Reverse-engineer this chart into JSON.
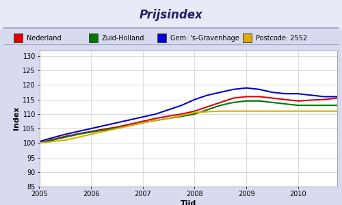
{
  "title": "Prijsindex",
  "xlabel": "Tijd",
  "ylabel": "Index",
  "ylim": [
    85,
    132
  ],
  "yticks": [
    85,
    90,
    95,
    100,
    105,
    110,
    115,
    120,
    125,
    130
  ],
  "xlim": [
    2005.0,
    2010.75
  ],
  "xticks": [
    2005,
    2006,
    2007,
    2008,
    2009,
    2010
  ],
  "background_outer": "#d8daf0",
  "background_inner": "#ffffff",
  "title_color": "#222266",
  "legend_labels": [
    "Nederland",
    "Zuid-Holland",
    "Gem: 's-Gravenhage",
    "Postcode: 2552"
  ],
  "legend_colors": [
    "#dd0000",
    "#007700",
    "#0000cc",
    "#ddaa00"
  ],
  "series": {
    "nederland": {
      "color": "#dd0000",
      "x": [
        2005.0,
        2005.25,
        2005.5,
        2005.75,
        2006.0,
        2006.25,
        2006.5,
        2006.75,
        2007.0,
        2007.25,
        2007.5,
        2007.75,
        2008.0,
        2008.25,
        2008.5,
        2008.75,
        2009.0,
        2009.25,
        2009.5,
        2009.75,
        2010.0,
        2010.25,
        2010.5,
        2010.75
      ],
      "y": [
        100.0,
        101.2,
        102.3,
        103.2,
        104.0,
        104.8,
        105.5,
        106.5,
        107.5,
        108.5,
        109.3,
        110.0,
        111.0,
        112.5,
        114.0,
        115.5,
        116.0,
        116.0,
        115.5,
        115.0,
        114.5,
        114.8,
        115.0,
        115.5
      ]
    },
    "zuidholland": {
      "color": "#007700",
      "x": [
        2005.0,
        2005.25,
        2005.5,
        2005.75,
        2006.0,
        2006.25,
        2006.5,
        2006.75,
        2007.0,
        2007.25,
        2007.5,
        2007.75,
        2008.0,
        2008.25,
        2008.5,
        2008.75,
        2009.0,
        2009.25,
        2009.5,
        2009.75,
        2010.0,
        2010.25,
        2010.5,
        2010.75
      ],
      "y": [
        100.0,
        101.0,
        102.0,
        103.0,
        103.8,
        104.5,
        105.2,
        106.0,
        107.0,
        107.8,
        108.5,
        109.2,
        110.0,
        111.5,
        113.0,
        114.0,
        114.5,
        114.5,
        114.0,
        113.5,
        113.0,
        113.0,
        113.0,
        113.0
      ]
    },
    "gravenhage": {
      "color": "#0000cc",
      "x": [
        2005.0,
        2005.25,
        2005.5,
        2005.75,
        2006.0,
        2006.25,
        2006.5,
        2006.75,
        2007.0,
        2007.25,
        2007.5,
        2007.75,
        2008.0,
        2008.25,
        2008.5,
        2008.75,
        2009.0,
        2009.25,
        2009.5,
        2009.75,
        2010.0,
        2010.25,
        2010.5,
        2010.75
      ],
      "y": [
        100.5,
        101.8,
        103.0,
        104.0,
        105.0,
        106.0,
        107.0,
        108.0,
        109.0,
        110.0,
        111.5,
        113.0,
        115.0,
        116.5,
        117.5,
        118.5,
        119.0,
        118.5,
        117.5,
        117.0,
        117.0,
        116.5,
        116.0,
        116.0
      ]
    },
    "postcode": {
      "color": "#ddaa00",
      "x": [
        2005.0,
        2005.25,
        2005.5,
        2005.75,
        2006.0,
        2006.25,
        2006.5,
        2006.75,
        2007.0,
        2007.25,
        2007.5,
        2007.75,
        2008.0,
        2008.25,
        2008.5,
        2008.75,
        2009.0,
        2009.25,
        2009.5,
        2009.75,
        2010.0,
        2010.25,
        2010.5,
        2010.75
      ],
      "y": [
        100.0,
        100.5,
        101.0,
        102.0,
        103.0,
        104.0,
        105.0,
        106.0,
        107.0,
        107.8,
        108.5,
        109.5,
        110.5,
        110.8,
        111.0,
        111.0,
        111.0,
        111.0,
        111.0,
        111.0,
        111.0,
        111.0,
        111.0,
        111.0
      ]
    }
  }
}
